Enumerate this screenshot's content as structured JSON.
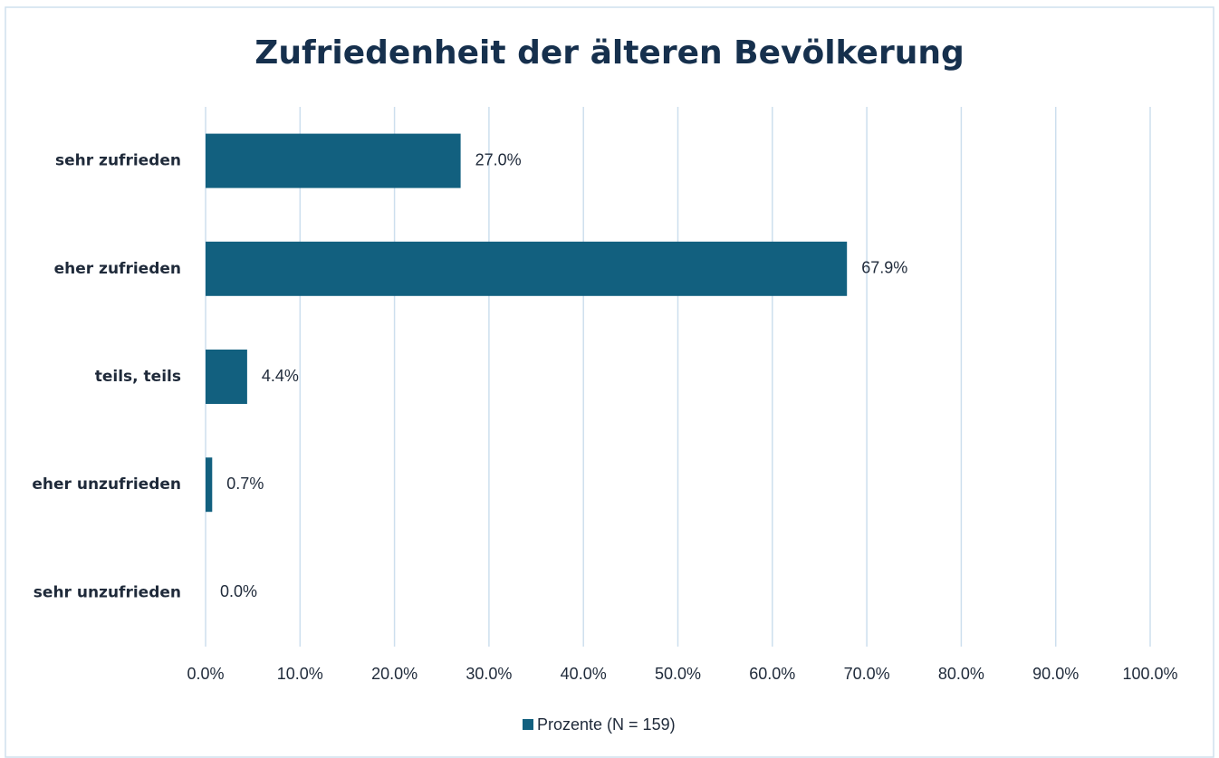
{
  "chart_data": {
    "type": "hbar",
    "title": "Zufriedenheit der älteren Bevölkerung",
    "categories": [
      "sehr zufrieden",
      "eher zufrieden",
      "teils, teils",
      "eher unzufrieden",
      "sehr unzufrieden"
    ],
    "series": [
      {
        "name": "Prozente (N = 159)",
        "color": "#12607f",
        "values": [
          27.0,
          67.9,
          4.4,
          0.7,
          0.0
        ],
        "value_labels": [
          "27.0%",
          "67.9%",
          "4.4%",
          "0.7%",
          "0.0%"
        ]
      }
    ],
    "xlim": [
      0,
      100
    ],
    "xticks": [
      {
        "value": 0,
        "label": "0.0%"
      },
      {
        "value": 10,
        "label": "10.0%"
      },
      {
        "value": 20,
        "label": "20.0%"
      },
      {
        "value": 30,
        "label": "30.0%"
      },
      {
        "value": 40,
        "label": "40.0%"
      },
      {
        "value": 50,
        "label": "50.0%"
      },
      {
        "value": 60,
        "label": "60.0%"
      },
      {
        "value": 70,
        "label": "70.0%"
      },
      {
        "value": 80,
        "label": "80.0%"
      },
      {
        "value": 90,
        "label": "90.0%"
      },
      {
        "value": 100,
        "label": "100.0%"
      }
    ],
    "grid": true,
    "legend": "bottom"
  }
}
